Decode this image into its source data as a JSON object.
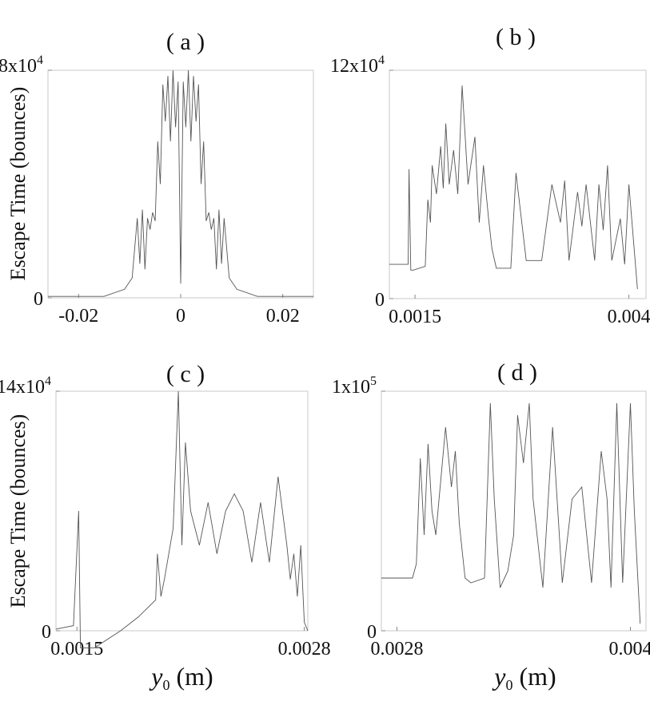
{
  "chart_data": [
    {
      "type": "line",
      "panel": "( a )",
      "ylabel": "Escape Time (bounces)",
      "xlabel": "",
      "xlim": [
        -0.026,
        0.026
      ],
      "ylim": [
        0,
        80000
      ],
      "xticks": [
        {
          "value": -0.02,
          "label": "-0.02"
        },
        {
          "value": 0,
          "label": "0"
        },
        {
          "value": 0.02,
          "label": "0.02"
        }
      ],
      "yticks": [
        {
          "value": 0,
          "label": "0"
        },
        {
          "value": 80000,
          "label": "8x10",
          "exp": "4"
        }
      ],
      "series": [
        {
          "x": [
            -0.026,
            -0.015,
            -0.011,
            -0.0095,
            -0.0085,
            -0.008,
            -0.0075,
            -0.007,
            -0.0065,
            -0.006,
            -0.0055,
            -0.005,
            -0.0045,
            -0.004,
            -0.0035,
            -0.003,
            -0.0025,
            -0.002,
            -0.0015,
            -0.001,
            -0.0005,
            0,
            0.0005,
            0.001,
            0.0015,
            0.002,
            0.0025,
            0.003,
            0.0035,
            0.004,
            0.0045,
            0.005,
            0.0055,
            0.006,
            0.0065,
            0.007,
            0.0075,
            0.008,
            0.0085,
            0.0095,
            0.011,
            0.015,
            0.026
          ],
          "y": [
            500,
            500,
            3000,
            7000,
            28000,
            12000,
            31000,
            10000,
            28000,
            24000,
            30000,
            27000,
            55000,
            40000,
            75000,
            62000,
            78000,
            55000,
            80000,
            60000,
            76000,
            5000,
            76000,
            60000,
            80000,
            55000,
            78000,
            62000,
            75000,
            40000,
            55000,
            27000,
            30000,
            24000,
            28000,
            10000,
            31000,
            12000,
            28000,
            7000,
            3000,
            500,
            500
          ]
        }
      ]
    },
    {
      "type": "line",
      "panel": "( b )",
      "ylabel": "",
      "xlabel": "",
      "xlim": [
        0.0012,
        0.0042
      ],
      "ylim": [
        0,
        120000
      ],
      "xticks": [
        {
          "value": 0.0015,
          "label": "0.0015"
        },
        {
          "value": 0.004,
          "label": "0.004"
        }
      ],
      "yticks": [
        {
          "value": 0,
          "label": "0"
        },
        {
          "value": 120000,
          "label": "12x10",
          "exp": "4"
        }
      ],
      "series": [
        {
          "x": [
            0.0012,
            0.00142,
            0.00143,
            0.00145,
            0.00148,
            0.00162,
            0.00165,
            0.00168,
            0.0017,
            0.00175,
            0.0018,
            0.00183,
            0.00186,
            0.0019,
            0.00195,
            0.002,
            0.00205,
            0.00212,
            0.0022,
            0.00225,
            0.0023,
            0.00236,
            0.0024,
            0.00245,
            0.00262,
            0.00268,
            0.0028,
            0.00298,
            0.0031,
            0.0032,
            0.00325,
            0.0033,
            0.0034,
            0.00345,
            0.0035,
            0.0036,
            0.00365,
            0.0037,
            0.00375,
            0.0038,
            0.0039,
            0.00395,
            0.004,
            0.0041
          ],
          "y": [
            18000,
            18000,
            68000,
            15000,
            15000,
            17000,
            52000,
            40000,
            70000,
            55000,
            80000,
            58000,
            92000,
            60000,
            78000,
            55000,
            112000,
            60000,
            85000,
            40000,
            70000,
            42000,
            26000,
            16000,
            16000,
            66000,
            20000,
            20000,
            60000,
            40000,
            62000,
            20000,
            56000,
            38000,
            60000,
            20000,
            60000,
            36000,
            70000,
            20000,
            42000,
            18000,
            60000,
            5000
          ]
        }
      ]
    },
    {
      "type": "line",
      "panel": "( c )",
      "ylabel": "Escape Time (bounces)",
      "xlabel": "",
      "xlim": [
        0.00138,
        0.00282
      ],
      "ylim": [
        0,
        140000
      ],
      "xticks": [
        {
          "value": 0.0015,
          "label": "0.0015"
        },
        {
          "value": 0.0028,
          "label": "0.0028"
        }
      ],
      "yticks": [
        {
          "value": 0,
          "label": "0"
        },
        {
          "value": 140000,
          "label": "14x10",
          "exp": "4"
        }
      ],
      "series": [
        {
          "x": [
            0.00138,
            0.00148,
            0.00151,
            0.00152,
            0.0016,
            0.00175,
            0.00185,
            0.00195,
            0.00196,
            0.00198,
            0.002,
            0.00205,
            0.00208,
            0.0021,
            0.00212,
            0.00215,
            0.0022,
            0.00225,
            0.0023,
            0.00235,
            0.0024,
            0.00245,
            0.0025,
            0.00255,
            0.0026,
            0.00265,
            0.0027,
            0.00272,
            0.00274,
            0.00276,
            0.00278,
            0.0028,
            0.00282
          ],
          "y": [
            1000,
            3000,
            70000,
            -10000,
            -10000,
            0,
            8000,
            18000,
            45000,
            20000,
            30000,
            60000,
            140000,
            50000,
            110000,
            70000,
            50000,
            75000,
            45000,
            70000,
            80000,
            70000,
            40000,
            75000,
            40000,
            90000,
            50000,
            30000,
            45000,
            20000,
            50000,
            5000,
            0
          ]
        }
      ]
    },
    {
      "type": "line",
      "panel": "( d )",
      "ylabel": "",
      "xlabel": "",
      "xlim": [
        0.00272,
        0.00408
      ],
      "ylim": [
        0,
        100000
      ],
      "xticks": [
        {
          "value": 0.0028,
          "label": "0.0028"
        },
        {
          "value": 0.004,
          "label": "0.004"
        }
      ],
      "yticks": [
        {
          "value": 0,
          "label": "0"
        },
        {
          "value": 100000,
          "label": "1x10",
          "exp": "5"
        }
      ],
      "series": [
        {
          "x": [
            0.00272,
            0.00288,
            0.0029,
            0.00292,
            0.00294,
            0.00296,
            0.00298,
            0.003,
            0.00305,
            0.00308,
            0.0031,
            0.00312,
            0.00315,
            0.00318,
            0.00325,
            0.00328,
            0.0033,
            0.00333,
            0.00337,
            0.0034,
            0.00342,
            0.00345,
            0.00348,
            0.0035,
            0.00355,
            0.0036,
            0.00365,
            0.0037,
            0.00375,
            0.0038,
            0.00385,
            0.00388,
            0.0039,
            0.00393,
            0.00396,
            0.004,
            0.00402,
            0.00405
          ],
          "y": [
            22000,
            22000,
            28000,
            72000,
            40000,
            78000,
            50000,
            40000,
            85000,
            60000,
            75000,
            45000,
            22000,
            20000,
            22000,
            95000,
            55000,
            18000,
            25000,
            40000,
            90000,
            70000,
            95000,
            55000,
            18000,
            85000,
            20000,
            55000,
            60000,
            20000,
            75000,
            55000,
            18000,
            95000,
            20000,
            95000,
            50000,
            3000
          ]
        }
      ]
    }
  ],
  "shared": {
    "xlabel_var": "y",
    "xlabel_sub": "0",
    "xlabel_unit": "(m)"
  }
}
